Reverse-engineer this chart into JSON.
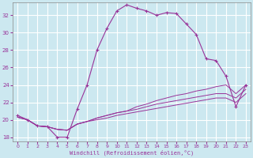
{
  "background_color": "#cce8f0",
  "grid_color": "#ffffff",
  "line_color": "#993399",
  "xlabel": "Windchill (Refroidissement éolien,°C)",
  "xlim": [
    -0.5,
    23.5
  ],
  "ylim": [
    17.5,
    33.5
  ],
  "xticks": [
    0,
    1,
    2,
    3,
    4,
    5,
    6,
    7,
    8,
    9,
    10,
    11,
    12,
    13,
    14,
    15,
    16,
    17,
    18,
    19,
    20,
    21,
    22,
    23
  ],
  "yticks": [
    18,
    20,
    22,
    24,
    26,
    28,
    30,
    32
  ],
  "series_main": [
    20.5,
    20.0,
    19.3,
    19.2,
    18.0,
    18.0,
    21.2,
    24.0,
    28.0,
    30.5,
    32.5,
    33.2,
    32.8,
    32.5,
    32.0,
    32.3,
    32.2,
    31.0,
    29.8,
    27.0,
    26.8,
    25.0,
    21.5,
    24.0
  ],
  "series2": [
    20.3,
    20.0,
    19.3,
    19.2,
    18.9,
    18.8,
    19.5,
    19.8,
    20.2,
    20.5,
    20.8,
    21.0,
    21.5,
    21.8,
    22.2,
    22.5,
    22.8,
    23.0,
    23.3,
    23.5,
    23.8,
    24.0,
    23.0,
    24.0
  ],
  "series3": [
    20.3,
    20.0,
    19.3,
    19.2,
    18.9,
    18.8,
    19.5,
    19.8,
    20.2,
    20.5,
    20.8,
    21.0,
    21.2,
    21.5,
    21.8,
    22.0,
    22.2,
    22.4,
    22.6,
    22.8,
    23.0,
    23.0,
    22.5,
    23.5
  ],
  "series4": [
    20.3,
    20.0,
    19.3,
    19.2,
    18.9,
    18.8,
    19.5,
    19.8,
    20.0,
    20.2,
    20.5,
    20.7,
    20.9,
    21.1,
    21.3,
    21.5,
    21.7,
    21.9,
    22.1,
    22.3,
    22.5,
    22.5,
    22.0,
    23.0
  ]
}
